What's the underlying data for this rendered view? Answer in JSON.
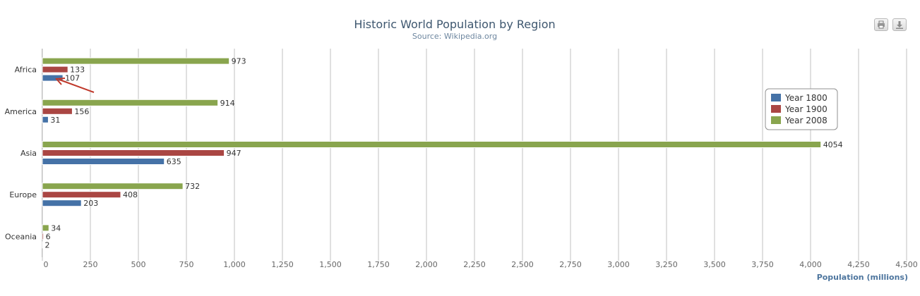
{
  "chart_data": {
    "type": "bar",
    "orientation": "horizontal",
    "title": "Historic World Population by Region",
    "subtitle": "Source: Wikipedia.org",
    "categories": [
      "Africa",
      "America",
      "Asia",
      "Europe",
      "Oceania"
    ],
    "series": [
      {
        "name": "Year 1800",
        "color": "#4572a7",
        "values": [
          107,
          31,
          635,
          203,
          2
        ]
      },
      {
        "name": "Year 1900",
        "color": "#aa4643",
        "values": [
          133,
          156,
          947,
          408,
          6
        ]
      },
      {
        "name": "Year 2008",
        "color": "#89a54e",
        "values": [
          973,
          914,
          4054,
          732,
          34
        ]
      }
    ],
    "xlabel": "Population (millions)",
    "xlim": [
      0,
      4500
    ],
    "xticks": [
      0,
      250,
      500,
      750,
      1000,
      1250,
      1500,
      1750,
      2000,
      2250,
      2500,
      2750,
      3000,
      3250,
      3500,
      3750,
      4000,
      4250,
      4500
    ],
    "xtick_labels": [
      "0",
      "250",
      "500",
      "750",
      "1,000",
      "1,250",
      "1,500",
      "1,750",
      "2,000",
      "2,250",
      "2,500",
      "2,750",
      "3,000",
      "3,250",
      "3,500",
      "3,750",
      "4,000",
      "4,250",
      "4,500"
    ],
    "grid": true,
    "legend_position": "right",
    "data_labels": true
  },
  "toolbar": {
    "print_icon": "printer-icon",
    "export_icon": "download-icon"
  },
  "colors": {
    "title": "#3e576f",
    "subtitle": "#6d869f",
    "axis_title": "#4d759e",
    "gridline": "#c0c0c0",
    "annotation_arrow": "#c0392b"
  }
}
